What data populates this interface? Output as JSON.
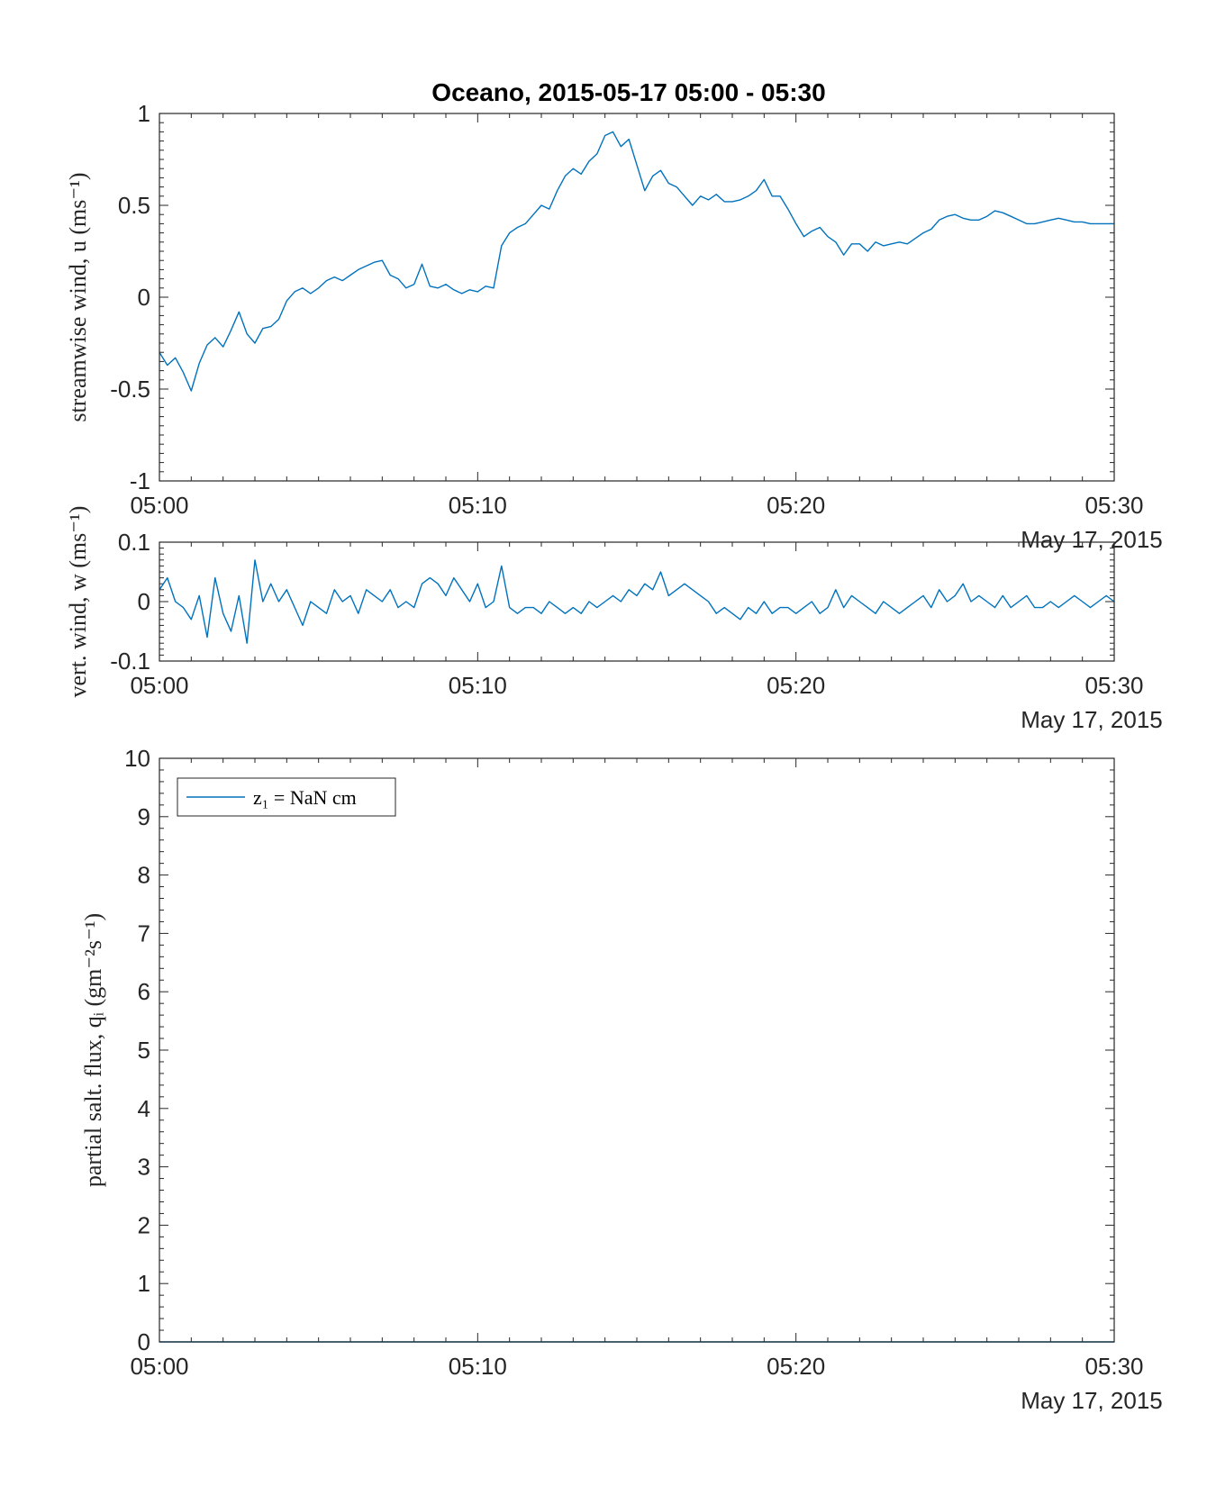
{
  "chart_data": [
    {
      "type": "line",
      "title": "Oceano, 2015-05-17 05:00 - 05:30",
      "ylabel": "streamwise wind, u (ms⁻¹)",
      "date_label": "May 17, 2015",
      "ylim": [
        -1,
        1
      ],
      "xlim": [
        "05:00",
        "05:30"
      ],
      "xticks": [
        "05:00",
        "05:10",
        "05:20",
        "05:30"
      ],
      "yticks": [
        "-1",
        "-0.5",
        "0",
        "0.5",
        "1"
      ],
      "color": "#0072bd",
      "x_minutes_from": "05:00",
      "series": [
        {
          "x": [
            0,
            0.25,
            0.5,
            0.75,
            1.0,
            1.25,
            1.5,
            1.75,
            2.0,
            2.25,
            2.5,
            2.75,
            3.0,
            3.25,
            3.5,
            3.75,
            4.0,
            4.25,
            4.5,
            4.75,
            5.0,
            5.25,
            5.5,
            5.75,
            6.0,
            6.25,
            6.5,
            6.75,
            7.0,
            7.25,
            7.5,
            7.75,
            8.0,
            8.25,
            8.5,
            8.75,
            9.0,
            9.25,
            9.5,
            9.75,
            10.0,
            10.25,
            10.5,
            10.75,
            11.0,
            11.25,
            11.5,
            11.75,
            12.0,
            12.25,
            12.5,
            12.75,
            13.0,
            13.25,
            13.5,
            13.75,
            14.0,
            14.25,
            14.5,
            14.75,
            15.0,
            15.25,
            15.5,
            15.75,
            16.0,
            16.25,
            16.5,
            16.75,
            17.0,
            17.25,
            17.5,
            17.75,
            18.0,
            18.25,
            18.5,
            18.75,
            19.0,
            19.25,
            19.5,
            19.75,
            20.0,
            20.25,
            20.5,
            20.75,
            21.0,
            21.25,
            21.5,
            21.75,
            22.0,
            22.25,
            22.5,
            22.75,
            23.0,
            23.25,
            23.5,
            23.75,
            24.0,
            24.25,
            24.5,
            24.75,
            25.0,
            25.25,
            25.5,
            25.75,
            26.0,
            26.25,
            26.5,
            26.75,
            27.0,
            27.25,
            27.5,
            27.75,
            28.0,
            28.25,
            28.5,
            28.75,
            29.0,
            29.25,
            29.5,
            29.75,
            30.0
          ],
          "values": [
            -0.3,
            -0.37,
            -0.33,
            -0.41,
            -0.51,
            -0.36,
            -0.26,
            -0.22,
            -0.27,
            -0.18,
            -0.08,
            -0.2,
            -0.25,
            -0.17,
            -0.16,
            -0.12,
            -0.02,
            0.03,
            0.05,
            0.02,
            0.05,
            0.09,
            0.11,
            0.09,
            0.12,
            0.15,
            0.17,
            0.19,
            0.2,
            0.12,
            0.1,
            0.05,
            0.07,
            0.18,
            0.06,
            0.05,
            0.07,
            0.04,
            0.02,
            0.04,
            0.03,
            0.06,
            0.05,
            0.28,
            0.35,
            0.38,
            0.4,
            0.45,
            0.5,
            0.48,
            0.58,
            0.66,
            0.7,
            0.67,
            0.74,
            0.78,
            0.88,
            0.9,
            0.82,
            0.86,
            0.72,
            0.58,
            0.66,
            0.69,
            0.62,
            0.6,
            0.55,
            0.5,
            0.55,
            0.53,
            0.56,
            0.52,
            0.52,
            0.53,
            0.55,
            0.58,
            0.64,
            0.55,
            0.55,
            0.48,
            0.4,
            0.33,
            0.36,
            0.38,
            0.33,
            0.3,
            0.23,
            0.29,
            0.29,
            0.25,
            0.3,
            0.28,
            0.29,
            0.3,
            0.29,
            0.32,
            0.35,
            0.37,
            0.42,
            0.44,
            0.45,
            0.43,
            0.42,
            0.42,
            0.44,
            0.47,
            0.46,
            0.44,
            0.42,
            0.4,
            0.4,
            0.41,
            0.42,
            0.43,
            0.42,
            0.41,
            0.41,
            0.4,
            0.4,
            0.4,
            0.4
          ]
        }
      ]
    },
    {
      "type": "line",
      "title": "",
      "ylabel": "vert. wind, w (ms⁻¹)",
      "date_label": "May 17, 2015",
      "ylim": [
        -0.1,
        0.1
      ],
      "xlim": [
        "05:00",
        "05:30"
      ],
      "xticks": [
        "05:00",
        "05:10",
        "05:20",
        "05:30"
      ],
      "yticks": [
        "-0.1",
        "0",
        "0.1"
      ],
      "color": "#0072bd",
      "x_minutes_from": "05:00",
      "series": [
        {
          "x": [
            0,
            0.25,
            0.5,
            0.75,
            1.0,
            1.25,
            1.5,
            1.75,
            2.0,
            2.25,
            2.5,
            2.75,
            3.0,
            3.25,
            3.5,
            3.75,
            4.0,
            4.25,
            4.5,
            4.75,
            5.0,
            5.25,
            5.5,
            5.75,
            6.0,
            6.25,
            6.5,
            6.75,
            7.0,
            7.25,
            7.5,
            7.75,
            8.0,
            8.25,
            8.5,
            8.75,
            9.0,
            9.25,
            9.5,
            9.75,
            10.0,
            10.25,
            10.5,
            10.75,
            11.0,
            11.25,
            11.5,
            11.75,
            12.0,
            12.25,
            12.5,
            12.75,
            13.0,
            13.25,
            13.5,
            13.75,
            14.0,
            14.25,
            14.5,
            14.75,
            15.0,
            15.25,
            15.5,
            15.75,
            16.0,
            16.25,
            16.5,
            16.75,
            17.0,
            17.25,
            17.5,
            17.75,
            18.0,
            18.25,
            18.5,
            18.75,
            19.0,
            19.25,
            19.5,
            19.75,
            20.0,
            20.25,
            20.5,
            20.75,
            21.0,
            21.25,
            21.5,
            21.75,
            22.0,
            22.25,
            22.5,
            22.75,
            23.0,
            23.25,
            23.5,
            23.75,
            24.0,
            24.25,
            24.5,
            24.75,
            25.0,
            25.25,
            25.5,
            25.75,
            26.0,
            26.25,
            26.5,
            26.75,
            27.0,
            27.25,
            27.5,
            27.75,
            28.0,
            28.25,
            28.5,
            28.75,
            29.0,
            29.25,
            29.5,
            29.75,
            30.0
          ],
          "values": [
            0.02,
            0.04,
            0.0,
            -0.01,
            -0.03,
            0.01,
            -0.06,
            0.04,
            -0.02,
            -0.05,
            0.01,
            -0.07,
            0.07,
            0.0,
            0.03,
            0.0,
            0.02,
            -0.01,
            -0.04,
            0.0,
            -0.01,
            -0.02,
            0.02,
            0.0,
            0.01,
            -0.02,
            0.02,
            0.01,
            0.0,
            0.02,
            -0.01,
            0.0,
            -0.01,
            0.03,
            0.04,
            0.03,
            0.01,
            0.04,
            0.02,
            0.0,
            0.03,
            -0.01,
            0.0,
            0.06,
            -0.01,
            -0.02,
            -0.01,
            -0.01,
            -0.02,
            0.0,
            -0.01,
            -0.02,
            -0.01,
            -0.02,
            0.0,
            -0.01,
            0.0,
            0.01,
            0.0,
            0.02,
            0.01,
            0.03,
            0.02,
            0.05,
            0.01,
            0.02,
            0.03,
            0.02,
            0.01,
            0.0,
            -0.02,
            -0.01,
            -0.02,
            -0.03,
            -0.01,
            -0.02,
            0.0,
            -0.02,
            -0.01,
            -0.01,
            -0.02,
            -0.01,
            0.0,
            -0.02,
            -0.01,
            0.02,
            -0.01,
            0.01,
            0.0,
            -0.01,
            -0.02,
            0.0,
            -0.01,
            -0.02,
            -0.01,
            0.0,
            0.01,
            -0.01,
            0.02,
            0.0,
            0.01,
            0.03,
            0.0,
            0.01,
            0.0,
            -0.01,
            0.01,
            -0.01,
            0.0,
            0.01,
            -0.01,
            -0.01,
            0.0,
            -0.01,
            0.0,
            0.01,
            0.0,
            -0.01,
            0.0,
            0.01,
            0.0
          ]
        }
      ]
    },
    {
      "type": "line",
      "title": "",
      "ylabel": "partial salt. flux, qᵢ (gm⁻²s⁻¹)",
      "date_label": "May 17, 2015",
      "ylim": [
        0,
        10
      ],
      "xlim": [
        "05:00",
        "05:30"
      ],
      "xticks": [
        "05:00",
        "05:10",
        "05:20",
        "05:30"
      ],
      "yticks": [
        "0",
        "1",
        "2",
        "3",
        "4",
        "5",
        "6",
        "7",
        "8",
        "9",
        "10"
      ],
      "color": "#0072bd",
      "x_minutes_from": "05:00",
      "legend": {
        "placement": "top-left",
        "entries": [
          "z₁ = NaN cm"
        ]
      },
      "series": [
        {
          "name": "z₁ = NaN cm",
          "x": [
            0,
            30
          ],
          "values": [
            0,
            0
          ]
        }
      ]
    }
  ]
}
